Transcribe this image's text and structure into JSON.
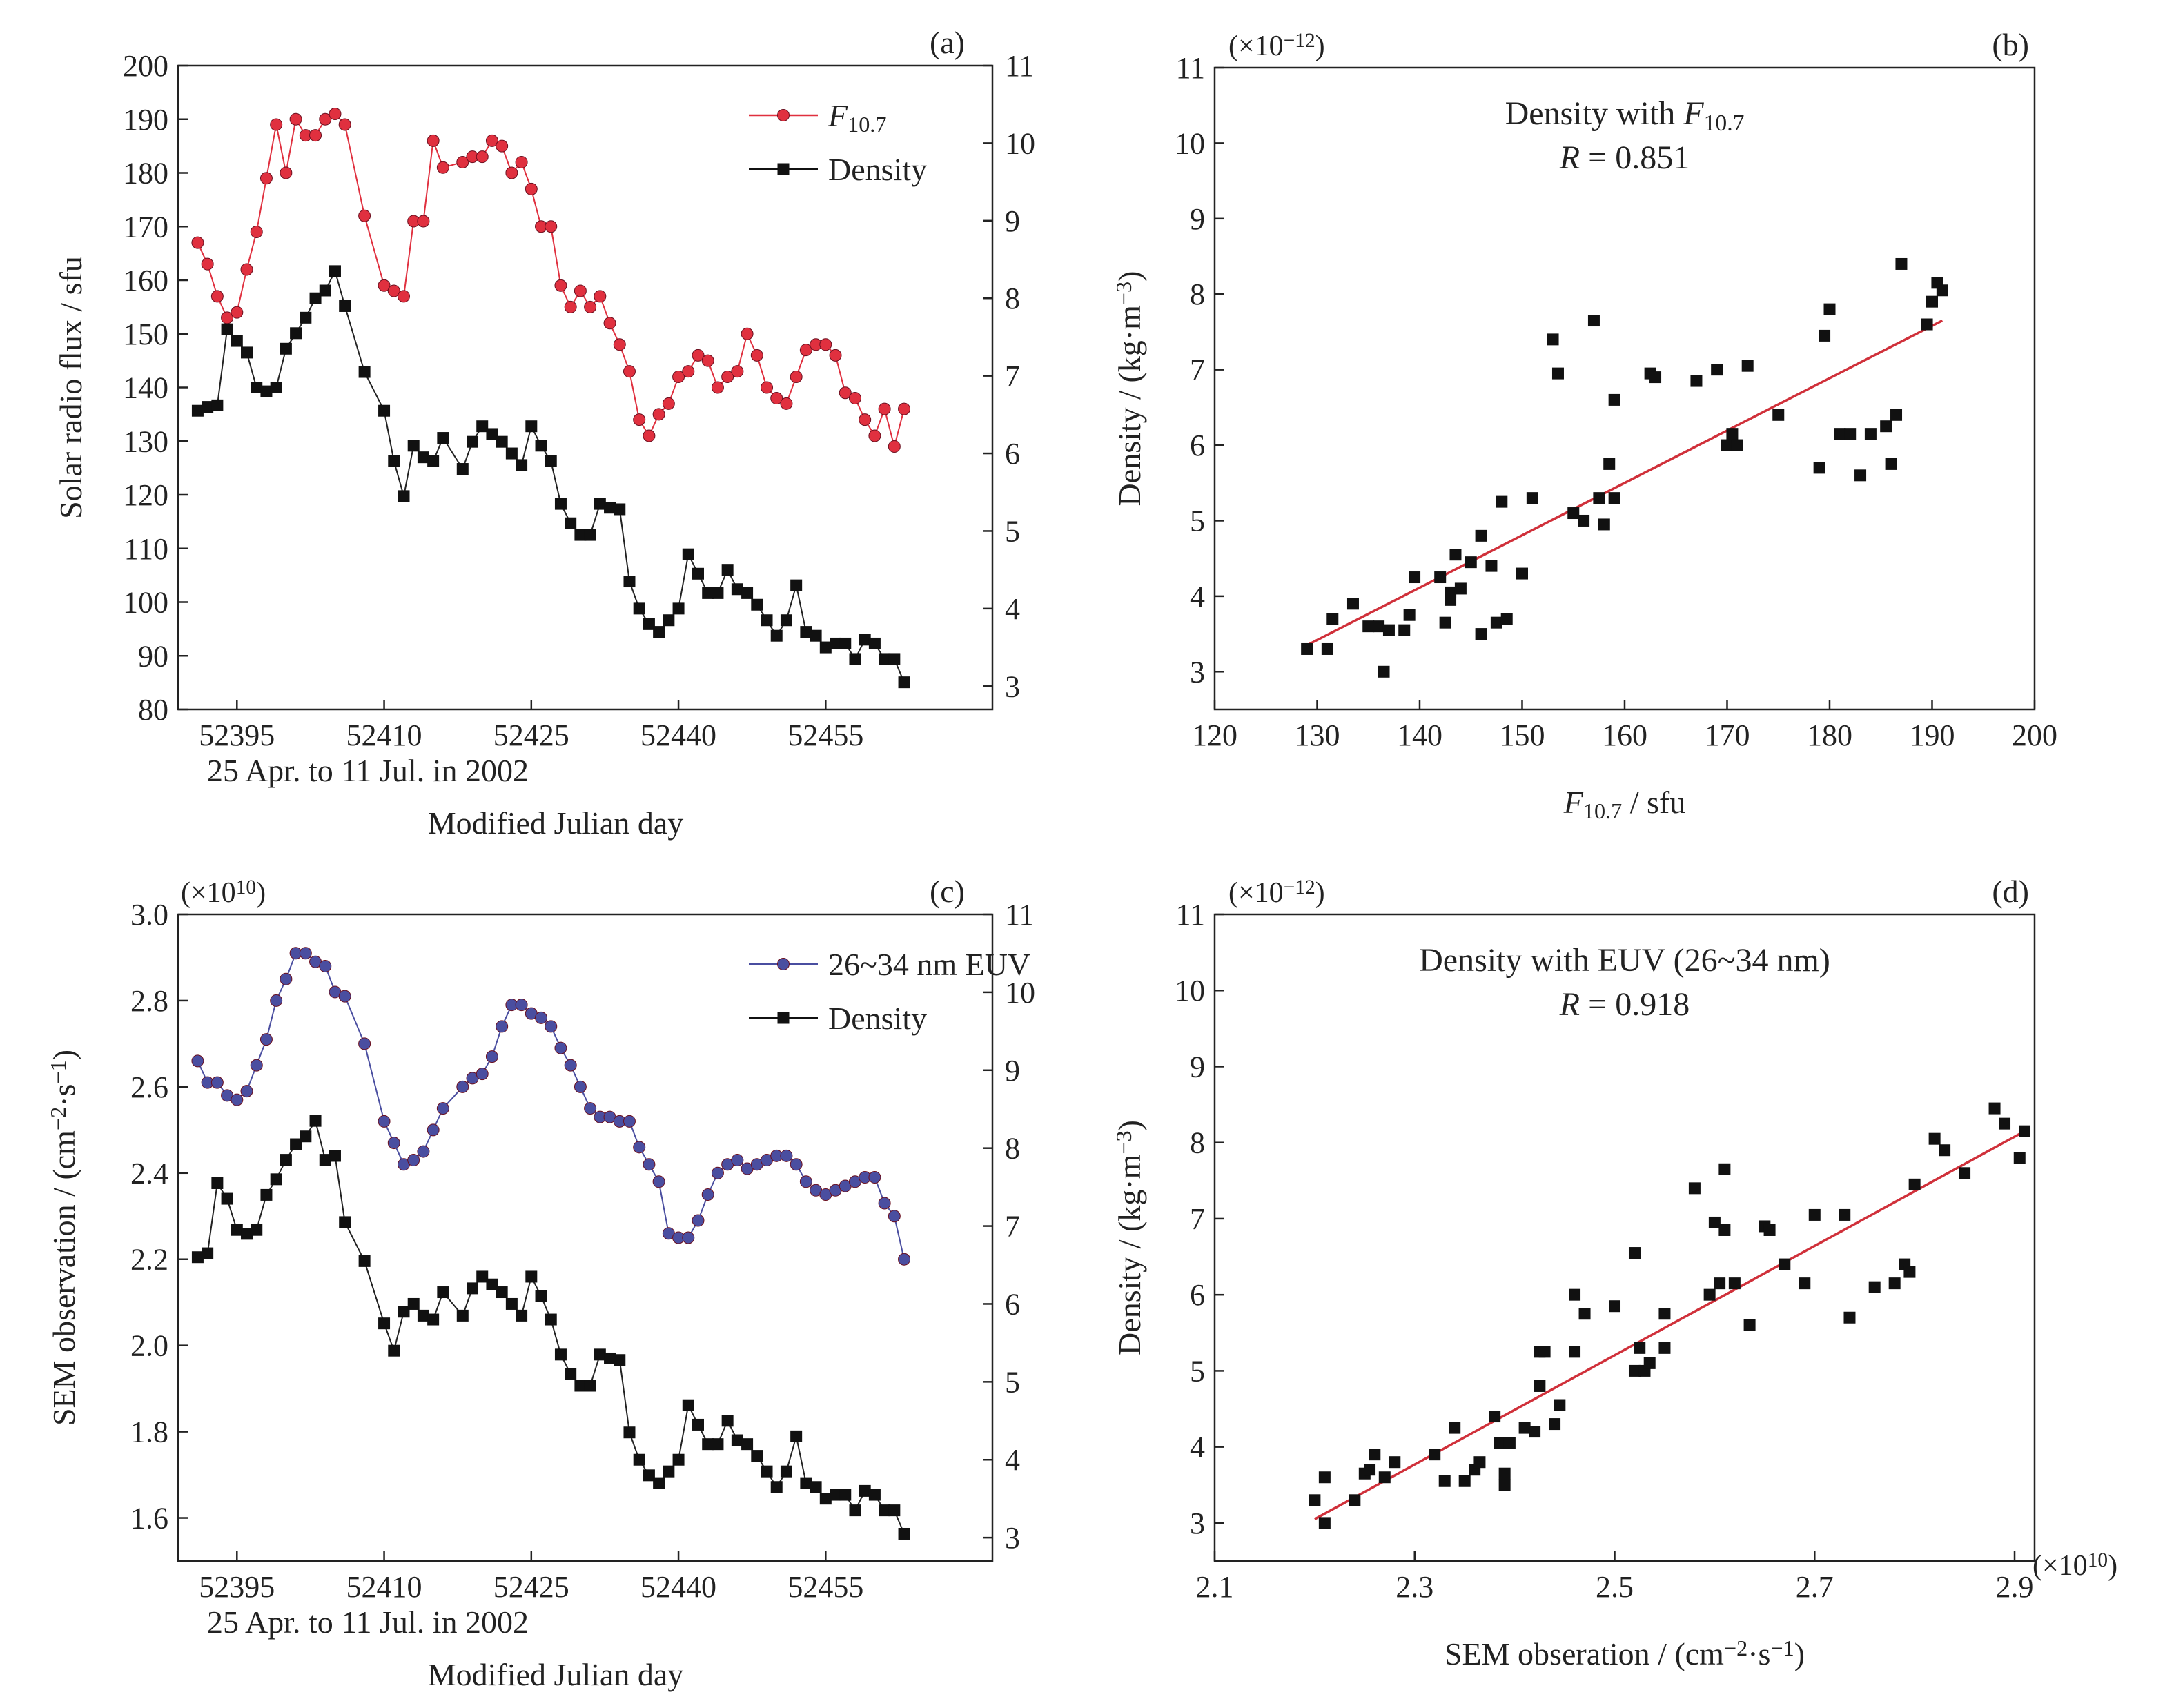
{
  "chart_data": [
    {
      "type": "line",
      "panel": "(a)",
      "xlabel": "Modified Julian day",
      "xsub": "25 Apr. to 11 Jul. in 2002",
      "ylabel": "Solar radio flux / sfu",
      "xlim": [
        52389,
        52472
      ],
      "ylim": [
        80,
        200
      ],
      "y2lim": [
        2.7,
        11
      ],
      "xticks": [
        "52395",
        "52410",
        "52425",
        "52440",
        "52455"
      ],
      "xtick_values": [
        52395,
        52410,
        52425,
        52440,
        52455
      ],
      "yticks": [
        "80",
        "90",
        "100",
        "110",
        "120",
        "130",
        "140",
        "150",
        "160",
        "170",
        "180",
        "190",
        "200"
      ],
      "y2ticks": [
        "3",
        "4",
        "5",
        "6",
        "7",
        "8",
        "9",
        "10",
        "11"
      ],
      "legend": [
        {
          "label": "F",
          "sub": "10.7",
          "marker": "circle",
          "color": "#e0303f"
        },
        {
          "label": "Density",
          "marker": "square",
          "color": "#111111"
        }
      ],
      "x": [
        52391,
        52392,
        52393,
        52394,
        52395,
        52396,
        52397,
        52398,
        52399,
        52400,
        52401,
        52402,
        52403,
        52404,
        52405,
        52406,
        52408,
        52410,
        52411,
        52412,
        52413,
        52414,
        52415,
        52416,
        52418,
        52419,
        52420,
        52421,
        52422,
        52423,
        52424,
        52425,
        52426,
        52427,
        52428,
        52429,
        52430,
        52431,
        52432,
        52433,
        52434,
        52435,
        52436,
        52437,
        52438,
        52439,
        52440,
        52441,
        52442,
        52443,
        52444,
        52445,
        52446,
        52447,
        52448,
        52449,
        52450,
        52451,
        52452,
        52453,
        52454,
        52455,
        52456,
        52457,
        52458,
        52459,
        52460,
        52461,
        52462,
        52463
      ],
      "series": [
        {
          "name": "F10.7",
          "axis": "left",
          "color": "#e0303f",
          "marker": "circle",
          "values": [
            167,
            163,
            157,
            153,
            154,
            162,
            169,
            179,
            189,
            180,
            190,
            187,
            187,
            190,
            191,
            189,
            172,
            159,
            158,
            157,
            171,
            171,
            186,
            181,
            182,
            183,
            183,
            186,
            185,
            180,
            182,
            177,
            170,
            170,
            159,
            155,
            158,
            155,
            157,
            152,
            148,
            143,
            134,
            131,
            135,
            137,
            142,
            143,
            146,
            145,
            140,
            142,
            143,
            150,
            146,
            140,
            138,
            137,
            142,
            147,
            148,
            148,
            146,
            139,
            138,
            134,
            131,
            136,
            129,
            136
          ]
        },
        {
          "name": "Density",
          "axis": "right",
          "color": "#111111",
          "marker": "square",
          "values": [
            6.55,
            6.6,
            6.62,
            7.6,
            7.45,
            7.3,
            6.85,
            6.8,
            6.85,
            7.35,
            7.55,
            7.75,
            8.0,
            8.1,
            8.35,
            7.9,
            7.05,
            6.55,
            5.9,
            5.45,
            6.1,
            5.95,
            5.9,
            6.2,
            5.8,
            6.15,
            6.35,
            6.25,
            6.15,
            6.0,
            5.85,
            6.35,
            6.1,
            5.9,
            5.35,
            5.1,
            4.95,
            4.95,
            5.35,
            5.3,
            5.28,
            4.35,
            4.0,
            3.8,
            3.7,
            3.85,
            4.0,
            4.7,
            4.45,
            4.2,
            4.2,
            4.5,
            4.25,
            4.2,
            4.05,
            3.85,
            3.65,
            3.85,
            4.3,
            3.7,
            3.65,
            3.5,
            3.55,
            3.55,
            3.35,
            3.6,
            3.55,
            3.35,
            3.35,
            3.05
          ]
        }
      ]
    },
    {
      "type": "scatter",
      "panel": "(b)",
      "annotation": {
        "line1": "Density with ",
        "line1_it": "F",
        "line1_sub": "10.7",
        "line2_it": "R",
        "line2": " = 0.851"
      },
      "multiplier": "(×10",
      "multiplier_exp": "−12",
      "xlabel": "F",
      "xlabel_sub": "10.7",
      "xlabel_rest": " / sfu",
      "ylabel": "Density / (kg·m",
      "ylabel_exp": "−3",
      "ylabel_close": ")",
      "xlim": [
        120,
        200
      ],
      "ylim": [
        2.5,
        11
      ],
      "xticks": [
        "120",
        "130",
        "140",
        "150",
        "160",
        "170",
        "180",
        "190",
        "200"
      ],
      "yticks": [
        "3",
        "4",
        "5",
        "6",
        "7",
        "8",
        "9",
        "10",
        "11"
      ],
      "fit_line": {
        "x": [
          129,
          191
        ],
        "y": [
          3.35,
          7.65
        ],
        "color": "#d0303a"
      },
      "points_x": [
        129,
        131,
        131.5,
        133.5,
        135,
        136,
        136.5,
        137,
        138.5,
        139,
        139.5,
        142,
        142.5,
        143,
        143,
        143.5,
        144,
        145,
        146,
        146,
        147,
        147.5,
        148,
        148.5,
        150,
        151,
        153,
        153.5,
        155,
        156,
        157,
        157.5,
        158,
        158.5,
        159,
        159,
        162.5,
        163,
        167,
        169,
        170,
        170.5,
        171,
        172,
        175,
        179,
        179.5,
        180,
        181,
        182,
        183,
        184,
        185.5,
        186,
        186.5,
        187,
        189.5,
        190,
        190.5,
        191
      ],
      "points_y": [
        3.3,
        3.3,
        3.7,
        3.9,
        3.6,
        3.6,
        3.0,
        3.55,
        3.55,
        3.75,
        4.25,
        4.25,
        3.65,
        3.95,
        4.05,
        4.55,
        4.1,
        4.45,
        4.8,
        3.5,
        4.4,
        3.65,
        5.25,
        3.7,
        4.3,
        5.3,
        7.4,
        6.95,
        5.1,
        5.0,
        7.65,
        5.3,
        4.95,
        5.75,
        5.3,
        6.6,
        6.95,
        6.9,
        6.85,
        7.0,
        6.0,
        6.15,
        6.0,
        7.05,
        6.4,
        5.7,
        7.45,
        7.8,
        6.15,
        6.15,
        5.6,
        6.15,
        6.25,
        5.75,
        6.4,
        8.4,
        7.6,
        7.9,
        8.15,
        8.05
      ]
    },
    {
      "type": "line",
      "panel": "(c)",
      "multiplier": "(×10",
      "multiplier_exp": "10",
      "xlabel": "Modified Julian day",
      "xsub": "25 Apr. to 11 Jul. in 2002",
      "ylabel": "SEM observation / (cm",
      "ylabel_exp1": "−2",
      "ylabel_mid": "·s",
      "ylabel_exp2": "−1",
      "ylabel_close": ")",
      "xlim": [
        52389,
        52472
      ],
      "ylim": [
        1.5,
        3.0
      ],
      "y2lim": [
        2.7,
        11
      ],
      "xticks": [
        "52395",
        "52410",
        "52425",
        "52440",
        "52455"
      ],
      "xtick_values": [
        52395,
        52410,
        52425,
        52440,
        52455
      ],
      "yticks": [
        "1.6",
        "1.8",
        "2.0",
        "2.2",
        "2.4",
        "2.6",
        "2.8",
        "3.0"
      ],
      "y2ticks": [
        "3",
        "4",
        "5",
        "6",
        "7",
        "8",
        "9",
        "10",
        "11"
      ],
      "legend": [
        {
          "label": "26~34 nm EUV",
          "marker": "circle",
          "color": "#4a4ea0"
        },
        {
          "label": "Density",
          "marker": "square",
          "color": "#111111"
        }
      ],
      "x": [
        52391,
        52392,
        52393,
        52394,
        52395,
        52396,
        52397,
        52398,
        52399,
        52400,
        52401,
        52402,
        52403,
        52404,
        52405,
        52406,
        52408,
        52410,
        52411,
        52412,
        52413,
        52414,
        52415,
        52416,
        52418,
        52419,
        52420,
        52421,
        52422,
        52423,
        52424,
        52425,
        52426,
        52427,
        52428,
        52429,
        52430,
        52431,
        52432,
        52433,
        52434,
        52435,
        52436,
        52437,
        52438,
        52439,
        52440,
        52441,
        52442,
        52443,
        52444,
        52445,
        52446,
        52447,
        52448,
        52449,
        52450,
        52451,
        52452,
        52453,
        52454,
        52455,
        52456,
        52457,
        52458,
        52459,
        52460,
        52461,
        52462,
        52463
      ],
      "series": [
        {
          "name": "26~34 nm EUV",
          "axis": "left",
          "color": "#4a4ea0",
          "marker": "circle",
          "values": [
            2.66,
            2.61,
            2.61,
            2.58,
            2.57,
            2.59,
            2.65,
            2.71,
            2.8,
            2.85,
            2.91,
            2.91,
            2.89,
            2.88,
            2.82,
            2.81,
            2.7,
            2.52,
            2.47,
            2.42,
            2.43,
            2.45,
            2.5,
            2.55,
            2.6,
            2.62,
            2.63,
            2.67,
            2.74,
            2.79,
            2.79,
            2.77,
            2.76,
            2.74,
            2.69,
            2.65,
            2.6,
            2.55,
            2.53,
            2.53,
            2.52,
            2.52,
            2.46,
            2.42,
            2.38,
            2.26,
            2.25,
            2.25,
            2.29,
            2.35,
            2.4,
            2.42,
            2.43,
            2.41,
            2.42,
            2.43,
            2.44,
            2.44,
            2.42,
            2.38,
            2.36,
            2.35,
            2.36,
            2.37,
            2.38,
            2.39,
            2.39,
            2.33,
            2.3,
            2.2
          ]
        },
        {
          "name": "Density",
          "axis": "right",
          "color": "#111111",
          "marker": "square",
          "values": [
            6.6,
            6.65,
            7.55,
            7.35,
            6.95,
            6.9,
            6.95,
            7.4,
            7.6,
            7.85,
            8.05,
            8.15,
            8.35,
            7.85,
            7.9,
            7.05,
            6.55,
            5.75,
            5.4,
            5.9,
            6.0,
            5.85,
            5.8,
            6.15,
            5.85,
            6.2,
            6.35,
            6.25,
            6.15,
            6.0,
            5.85,
            6.35,
            6.1,
            5.8,
            5.35,
            5.1,
            4.95,
            4.95,
            5.35,
            5.3,
            5.28,
            4.35,
            4.0,
            3.8,
            3.7,
            3.85,
            4.0,
            4.7,
            4.45,
            4.2,
            4.2,
            4.5,
            4.25,
            4.2,
            4.05,
            3.85,
            3.65,
            3.85,
            4.3,
            3.7,
            3.65,
            3.5,
            3.55,
            3.55,
            3.35,
            3.6,
            3.55,
            3.35,
            3.35,
            3.05
          ]
        }
      ]
    },
    {
      "type": "scatter",
      "panel": "(d)",
      "annotation": {
        "line1": "Density with EUV (26~34 nm)",
        "line2_it": "R",
        "line2": " = 0.918"
      },
      "multiplier": "(×10",
      "multiplier_exp": "−12",
      "x_multiplier": "(×10",
      "x_multiplier_exp": "10",
      "xlabel": "SEM obseration / (cm",
      "xlabel_exp1": "−2",
      "xlabel_mid": "·s",
      "xlabel_exp2": "−1",
      "xlabel_close": ")",
      "ylabel": "Density / (kg·m",
      "ylabel_exp": "−3",
      "ylabel_close": ")",
      "xlim": [
        2.1,
        2.92
      ],
      "ylim": [
        2.5,
        11
      ],
      "xticks": [
        "2.1",
        "2.3",
        "2.5",
        "2.7",
        "2.9"
      ],
      "xtick_values": [
        2.1,
        2.3,
        2.5,
        2.7,
        2.9
      ],
      "yticks": [
        "3",
        "4",
        "5",
        "6",
        "7",
        "8",
        "9",
        "10",
        "11"
      ],
      "fit_line": {
        "x": [
          2.2,
          2.91
        ],
        "y": [
          3.05,
          8.15
        ],
        "color": "#d0303a"
      },
      "points_x": [
        2.2,
        2.21,
        2.21,
        2.24,
        2.25,
        2.255,
        2.26,
        2.27,
        2.28,
        2.32,
        2.33,
        2.34,
        2.35,
        2.36,
        2.365,
        2.38,
        2.385,
        2.39,
        2.39,
        2.395,
        2.41,
        2.42,
        2.425,
        2.425,
        2.43,
        2.44,
        2.445,
        2.46,
        2.46,
        2.47,
        2.5,
        2.52,
        2.52,
        2.525,
        2.53,
        2.535,
        2.55,
        2.55,
        2.58,
        2.595,
        2.6,
        2.605,
        2.61,
        2.61,
        2.62,
        2.635,
        2.65,
        2.655,
        2.67,
        2.69,
        2.7,
        2.73,
        2.735,
        2.76,
        2.78,
        2.79,
        2.795,
        2.8,
        2.82,
        2.83,
        2.85,
        2.88,
        2.89,
        2.905,
        2.91
      ],
      "points_y": [
        3.3,
        3.0,
        3.6,
        3.3,
        3.65,
        3.7,
        3.9,
        3.6,
        3.8,
        3.9,
        3.55,
        4.25,
        3.55,
        3.7,
        3.8,
        4.4,
        4.05,
        3.65,
        3.5,
        4.05,
        4.25,
        4.2,
        5.25,
        4.8,
        5.25,
        4.3,
        4.55,
        5.25,
        6.0,
        5.75,
        5.85,
        6.55,
        5.0,
        5.3,
        5.0,
        5.1,
        5.3,
        5.75,
        7.4,
        6.0,
        6.95,
        6.15,
        6.85,
        7.65,
        6.15,
        5.6,
        6.9,
        6.85,
        6.4,
        6.15,
        7.05,
        7.05,
        5.7,
        6.1,
        6.15,
        6.4,
        6.3,
        7.45,
        8.05,
        7.9,
        7.6,
        8.45,
        8.25,
        7.8,
        8.15
      ]
    }
  ]
}
